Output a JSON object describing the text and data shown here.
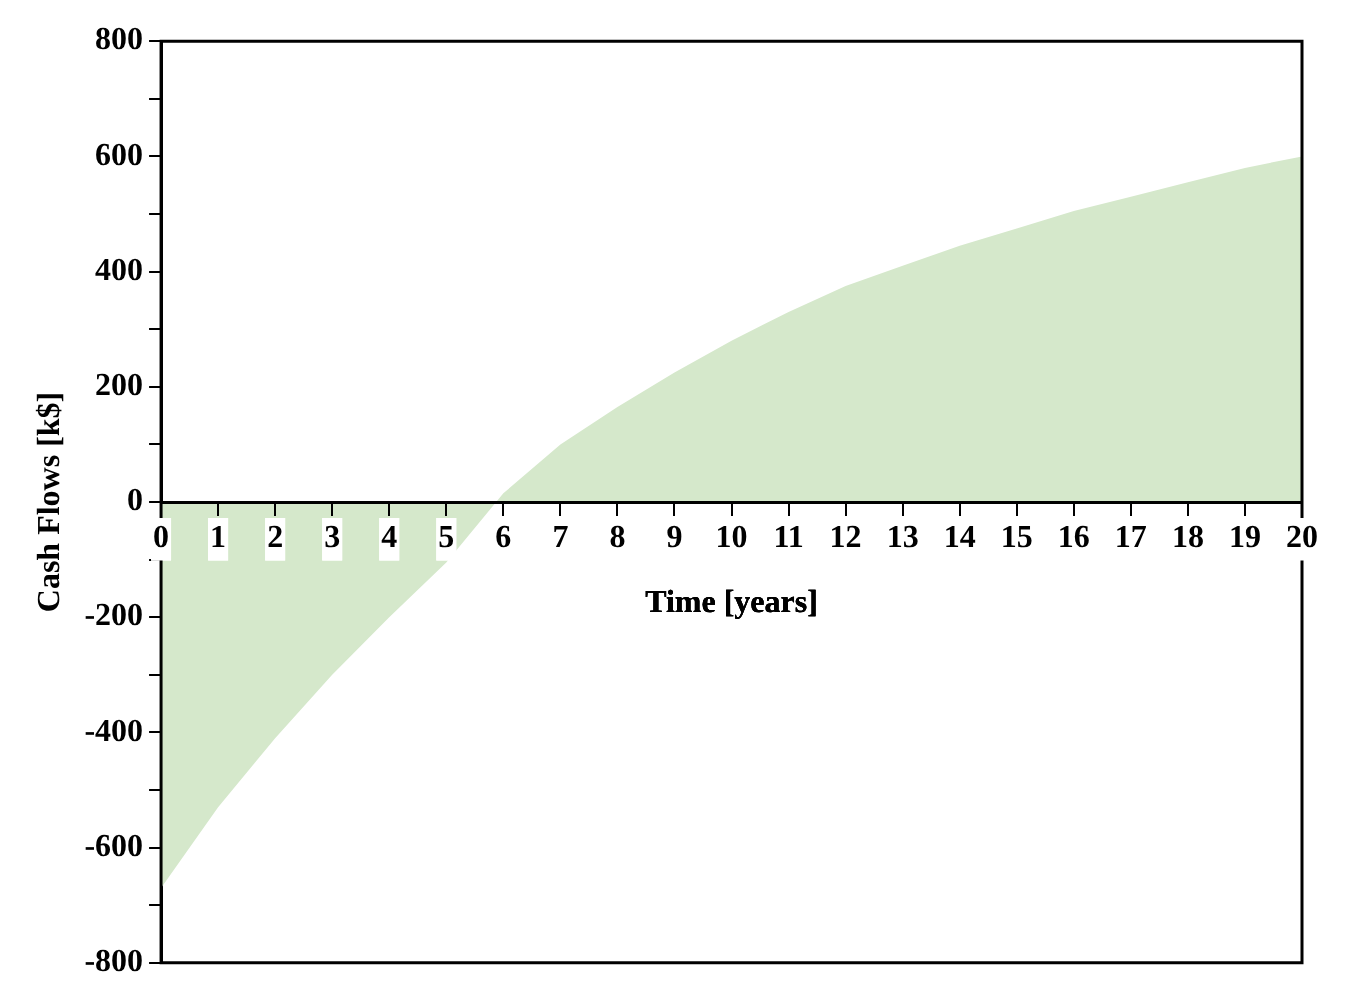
{
  "chart_data": {
    "type": "area",
    "xlabel": "Time [years]",
    "ylabel": "Cash Flows [k$]",
    "x": [
      0,
      1,
      2,
      3,
      4,
      5,
      6,
      7,
      8,
      9,
      10,
      11,
      12,
      13,
      14,
      15,
      16,
      17,
      18,
      19,
      20
    ],
    "series": [
      {
        "color": "#d5e8cb",
        "values": [
          -670,
          -530,
          -410,
          -300,
          -200,
          -105,
          15,
          100,
          165,
          225,
          280,
          330,
          375,
          410,
          445,
          475,
          505,
          530,
          555,
          580,
          600
        ]
      }
    ],
    "xlim": [
      0,
      20
    ],
    "xticks": [
      0,
      1,
      2,
      3,
      4,
      5,
      6,
      7,
      8,
      9,
      10,
      11,
      12,
      13,
      14,
      15,
      16,
      17,
      18,
      19,
      20
    ],
    "ylim": [
      -800,
      800
    ],
    "yticks": [
      -800,
      {
        "value": -700,
        "label": null
      },
      -600,
      {
        "value": -500,
        "label": null
      },
      -400,
      {
        "value": -300,
        "label": null
      },
      -200,
      {
        "value": -100,
        "label": null
      },
      0,
      {
        "value": 100,
        "label": null
      },
      200,
      {
        "value": 300,
        "label": null
      },
      400,
      {
        "value": 500,
        "label": null
      },
      600,
      {
        "value": 700,
        "label": null
      },
      800
    ],
    "grid": false,
    "legend": false,
    "marker": "none"
  }
}
